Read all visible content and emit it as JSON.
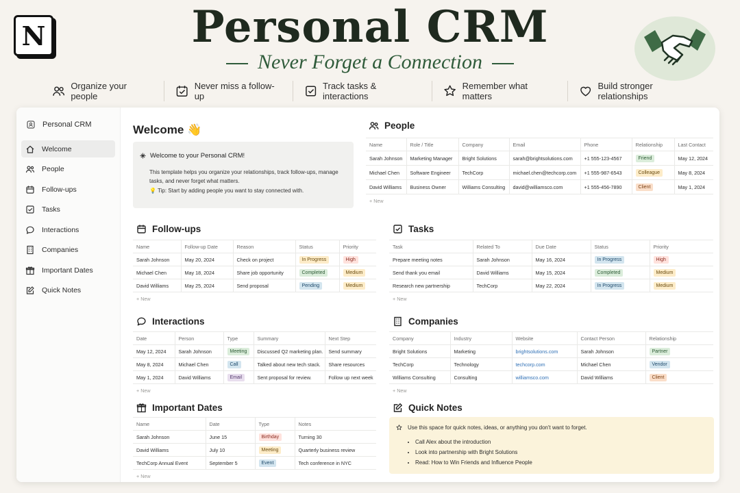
{
  "hero": {
    "logo_letter": "N",
    "title": "Personal CRM",
    "subtitle": "Never Forget a Connection",
    "features": [
      {
        "icon": "people-icon",
        "label": "Organize your people"
      },
      {
        "icon": "calendar-check-icon",
        "label": "Never miss a follow-up"
      },
      {
        "icon": "checkbox-icon",
        "label": "Track tasks & interactions"
      },
      {
        "icon": "star-icon",
        "label": "Remember what matters"
      },
      {
        "icon": "heart-icon",
        "label": "Build stronger relationships"
      }
    ]
  },
  "sidebar": {
    "workspace_title": "Personal CRM",
    "items": [
      {
        "label": "Welcome",
        "icon": "home-icon",
        "active": true
      },
      {
        "label": "People",
        "icon": "people-icon"
      },
      {
        "label": "Follow-ups",
        "icon": "calendar-icon"
      },
      {
        "label": "Tasks",
        "icon": "checkbox-icon"
      },
      {
        "label": "Interactions",
        "icon": "chat-icon"
      },
      {
        "label": "Companies",
        "icon": "building-icon"
      },
      {
        "label": "Important Dates",
        "icon": "gift-icon"
      },
      {
        "label": "Quick Notes",
        "icon": "edit-icon"
      }
    ]
  },
  "welcome": {
    "title": "Welcome 👋",
    "callout_title": "Welcome to your Personal CRM!",
    "callout_body": "This template helps you organize your relationships, track follow-ups, manage tasks, and never forget what matters.",
    "tip": "💡 Tip: Start by adding people you want to stay connected with."
  },
  "new_label": "+ New",
  "people": {
    "title": "People",
    "columns": [
      "Name",
      "Role / Title",
      "Company",
      "Email",
      "Phone",
      "Relationship",
      "Last Contact"
    ],
    "rows": [
      {
        "name": "Sarah Johnson",
        "role": "Marketing Manager",
        "company": "Bright Solutions",
        "email": "sarah@brightsolutions.com",
        "phone": "+1 555-123-4567",
        "relationship": "Friend",
        "last": "May 12, 2024"
      },
      {
        "name": "Michael Chen",
        "role": "Software Engineer",
        "company": "TechCorp",
        "email": "michael.chen@techcorp.com",
        "phone": "+1 555-987-6543",
        "relationship": "Colleague",
        "last": "May 8, 2024"
      },
      {
        "name": "David Williams",
        "role": "Business Owner",
        "company": "Williams Consulting",
        "email": "david@williamsco.com",
        "phone": "+1 555-456-7890",
        "relationship": "Client",
        "last": "May 1, 2024"
      }
    ]
  },
  "followups": {
    "title": "Follow-ups",
    "columns": [
      "Name",
      "Follow-up Date",
      "Reason",
      "Status",
      "Priority"
    ],
    "rows": [
      {
        "name": "Sarah Johnson",
        "date": "May 20, 2024",
        "reason": "Check on project",
        "status": "In Progress",
        "priority": "High"
      },
      {
        "name": "Michael Chen",
        "date": "May 18, 2024",
        "reason": "Share job opportunity",
        "status": "Completed",
        "priority": "Medium"
      },
      {
        "name": "David Williams",
        "date": "May 25, 2024",
        "reason": "Send proposal",
        "status": "Pending",
        "priority": "Medium"
      }
    ]
  },
  "tasks": {
    "title": "Tasks",
    "columns": [
      "Task",
      "Related To",
      "Due Date",
      "Status",
      "Priority"
    ],
    "rows": [
      {
        "task": "Prepare meeting notes",
        "related": "Sarah Johnson",
        "due": "May 16, 2024",
        "status": "In Progress",
        "priority": "High"
      },
      {
        "task": "Send thank you email",
        "related": "David Williams",
        "due": "May 15, 2024",
        "status": "Completed",
        "priority": "Medium"
      },
      {
        "task": "Research new partnership",
        "related": "TechCorp",
        "due": "May 22, 2024",
        "status": "In Progress",
        "priority": "Medium"
      }
    ]
  },
  "interactions": {
    "title": "Interactions",
    "columns": [
      "Date",
      "Person",
      "Type",
      "Summary",
      "Next Step"
    ],
    "rows": [
      {
        "date": "May 12, 2024",
        "person": "Sarah Johnson",
        "type": "Meeting",
        "summary": "Discussed Q2 marketing plan.",
        "next": "Send summary"
      },
      {
        "date": "May 8, 2024",
        "person": "Michael Chen",
        "type": "Call",
        "summary": "Talked about new tech stack.",
        "next": "Share resources"
      },
      {
        "date": "May 1, 2024",
        "person": "David Williams",
        "type": "Email",
        "summary": "Sent proposal for review.",
        "next": "Follow up next week"
      }
    ]
  },
  "companies": {
    "title": "Companies",
    "columns": [
      "Company",
      "Industry",
      "Website",
      "Contact Person",
      "Relationship"
    ],
    "rows": [
      {
        "company": "Bright Solutions",
        "industry": "Marketing",
        "website": "brightsolutions.com",
        "contact": "Sarah Johnson",
        "relationship": "Partner"
      },
      {
        "company": "TechCorp",
        "industry": "Technology",
        "website": "techcorp.com",
        "contact": "Michael Chen",
        "relationship": "Vendor"
      },
      {
        "company": "Williams Consulting",
        "industry": "Consulting",
        "website": "williamsco.com",
        "contact": "David Williams",
        "relationship": "Client"
      }
    ]
  },
  "dates": {
    "title": "Important Dates",
    "columns": [
      "Name",
      "Date",
      "Type",
      "Notes"
    ],
    "rows": [
      {
        "name": "Sarah Johnson",
        "date": "June 15",
        "type": "Birthday",
        "notes": "Turning 30"
      },
      {
        "name": "David Williams",
        "date": "July 10",
        "type": "Meeting",
        "notes": "Quarterly business review"
      },
      {
        "name": "TechCorp Annual Event",
        "date": "September 5",
        "type": "Event",
        "notes": "Tech conference in NYC"
      }
    ]
  },
  "quick_notes": {
    "title": "Quick Notes",
    "intro": "Use this space for quick notes, ideas, or anything you don't want to forget.",
    "items": [
      "Call Alex about the introduction",
      "Look into partnership with Bright Solutions",
      "Read: How to Win Friends and Influence People"
    ]
  },
  "colors": {
    "accent_green": "#2f5b3a",
    "background": "#f6f3ee",
    "notes_bg": "#fbf3db"
  }
}
